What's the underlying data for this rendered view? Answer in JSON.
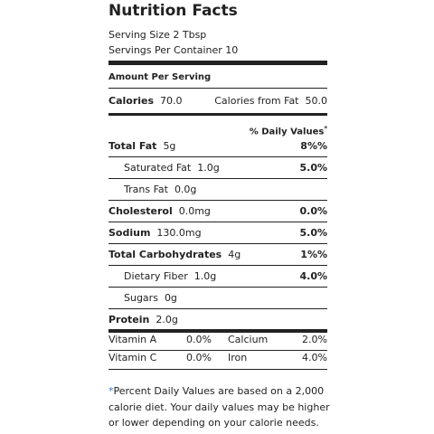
{
  "header": {
    "title": "Nutrition Facts",
    "serving_size": "Serving Size 2 Tbsp",
    "servings": "Servings Per Container 10"
  },
  "amount_per_serving": "Amount Per Serving",
  "calories": {
    "label": "Calories",
    "value": "70.0"
  },
  "calories_from_fat": {
    "label": "Calories from Fat",
    "value": "50.0"
  },
  "daily_values_header": {
    "text": "% Daily Values",
    "mark": "*"
  },
  "nutrients": [
    {
      "label": "Total Fat",
      "amount": "5g",
      "dv": "8%%"
    },
    {
      "label": "Saturated Fat",
      "amount": "1.0g",
      "dv": "5.0%"
    },
    {
      "label": "Trans Fat",
      "amount": "0.0g"
    },
    {
      "label": "Cholesterol",
      "amount": "0.0mg",
      "dv": "0.0%"
    },
    {
      "label": "Sodium",
      "amount": "130.0mg",
      "dv": "5.0%"
    },
    {
      "label": "Total Carbohydrates",
      "amount": "4g",
      "dv": "1%%"
    },
    {
      "label": "Dietary Fiber",
      "amount": "1.0g",
      "dv": "4.0%"
    },
    {
      "label": "Sugars",
      "amount": "0g"
    },
    {
      "label": "Protein",
      "amount": "2.0g"
    }
  ],
  "vitamins": [
    [
      "Vitamin A",
      "0.0%",
      "Calcium",
      "2.0%"
    ],
    [
      "Vitamin C",
      "0.0%",
      "Iron",
      "4.0%"
    ]
  ],
  "footnote": {
    "mark": "*",
    "lines": [
      "Percent Daily Values are based on a 2,000",
      "calorie diet. Your daily values may be higher",
      "or lower depending on your calorie needs."
    ]
  }
}
